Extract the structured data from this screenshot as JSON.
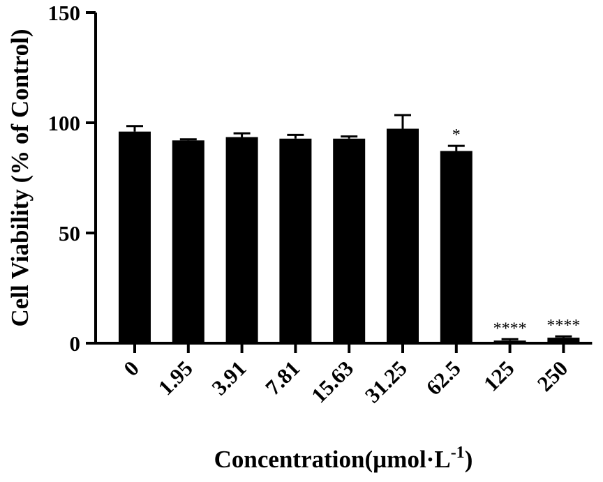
{
  "chart_data": {
    "type": "bar",
    "title": "",
    "xlabel": "Concentration(µmol·L",
    "xlabel_superscript": "-1",
    "xlabel_suffix": ")",
    "ylabel": "Cell Viability (% of Control)",
    "ylim": [
      0,
      150
    ],
    "yticks": [
      "0",
      "50",
      "100",
      "150"
    ],
    "categories": [
      "0",
      "1.95",
      "3.91",
      "7.81",
      "15.63",
      "31.25",
      "62.5",
      "125",
      "250"
    ],
    "values": [
      96,
      92,
      93.5,
      92.8,
      92.8,
      97.3,
      87.2,
      1.2,
      2.5
    ],
    "errors": [
      2.5,
      0.5,
      1.7,
      1.7,
      1.0,
      6.2,
      2.3,
      0.6,
      0.6
    ],
    "significance": [
      "",
      "",
      "",
      "",
      "",
      "",
      "*",
      "****",
      "****"
    ],
    "grid": false,
    "legend": "none",
    "bar_color": "#000000"
  }
}
